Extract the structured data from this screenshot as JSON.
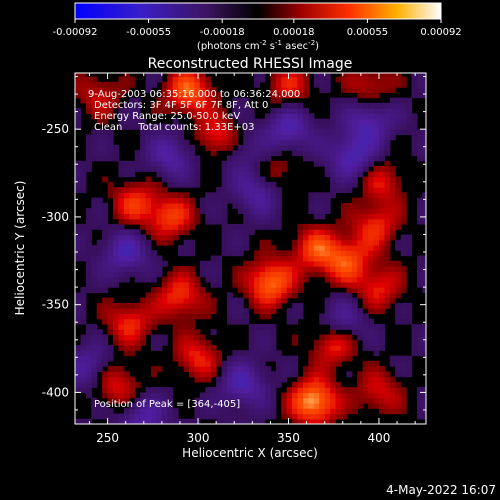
{
  "chart_data": {
    "type": "heatmap",
    "title": "Reconstructed RHESSI Image",
    "xlabel": "Heliocentric X (arcsec)",
    "ylabel": "Heliocentric Y (arcsec)",
    "xlim": [
      232,
      426
    ],
    "ylim": [
      -418,
      -218
    ],
    "xticks": [
      250,
      300,
      350,
      400
    ],
    "yticks": [
      -250,
      -300,
      -350,
      -400
    ],
    "grid": false,
    "colorbar": {
      "placement": "top",
      "range": [
        -0.00092,
        0.00092
      ],
      "ticks": [
        "-0.00092",
        "-0.00055",
        "-0.00018",
        "0.00018",
        "0.00055",
        "0.00092"
      ],
      "unit_prefix": "(photons cm",
      "unit_exp1": "-2",
      "unit_mid": " s",
      "unit_exp2": "-1",
      "unit_mid2": " asec",
      "unit_exp3": "-2",
      "unit_suffix": ")"
    },
    "annotations": {
      "time_range": "9-Aug-2003 06:35:16.000 to 06:36:24.000",
      "detectors": "Detectors: 3F 4F 5F 6F 7F 8F, Att 0",
      "energy": "Energy Range: 25.0-50.0 keV",
      "clean": "Clean     Total counts: 1.33E+03",
      "peak": "Position of Peak = [364,-405]"
    },
    "peak_position": [
      364,
      -405
    ],
    "features": [
      {
        "x": 364,
        "y": -405,
        "v": 0.00092
      },
      {
        "x": 340,
        "y": -337,
        "v": 0.0008
      },
      {
        "x": 295,
        "y": -228,
        "v": 0.00072
      },
      {
        "x": 312,
        "y": -255,
        "v": 0.00066
      },
      {
        "x": 382,
        "y": -325,
        "v": 0.00062
      },
      {
        "x": 365,
        "y": -318,
        "v": 0.0006
      },
      {
        "x": 265,
        "y": -292,
        "v": 0.00052
      },
      {
        "x": 285,
        "y": -300,
        "v": 0.00056
      },
      {
        "x": 375,
        "y": -372,
        "v": 0.00054
      },
      {
        "x": 262,
        "y": -360,
        "v": 0.0005
      },
      {
        "x": 290,
        "y": -345,
        "v": 0.00055
      },
      {
        "x": 398,
        "y": -305,
        "v": 0.0005
      },
      {
        "x": 402,
        "y": -280,
        "v": 0.0004
      },
      {
        "x": 350,
        "y": -225,
        "v": 0.00042
      },
      {
        "x": 400,
        "y": -340,
        "v": 0.00045
      },
      {
        "x": 300,
        "y": -380,
        "v": 0.00048
      },
      {
        "x": 255,
        "y": -395,
        "v": 0.00046
      },
      {
        "x": 400,
        "y": -400,
        "v": 0.0004
      },
      {
        "x": 245,
        "y": -230,
        "v": 0.00035
      },
      {
        "x": 345,
        "y": -275,
        "v": 0.0003
      },
      {
        "x": 395,
        "y": -225,
        "v": 0.00038
      },
      {
        "x": 320,
        "y": -260,
        "v": -0.0004
      },
      {
        "x": 260,
        "y": -320,
        "v": -0.0005
      },
      {
        "x": 285,
        "y": -265,
        "v": -0.00045
      },
      {
        "x": 385,
        "y": -265,
        "v": -0.00055
      },
      {
        "x": 395,
        "y": -245,
        "v": -0.0005
      },
      {
        "x": 350,
        "y": -250,
        "v": -0.00052
      },
      {
        "x": 333,
        "y": -285,
        "v": -0.00045
      },
      {
        "x": 380,
        "y": -360,
        "v": -0.00042
      },
      {
        "x": 325,
        "y": -395,
        "v": -0.0005
      },
      {
        "x": 270,
        "y": -415,
        "v": -0.00045
      },
      {
        "x": 240,
        "y": -385,
        "v": -0.0004
      }
    ],
    "footer_date": "4-May-2022 16:07"
  }
}
